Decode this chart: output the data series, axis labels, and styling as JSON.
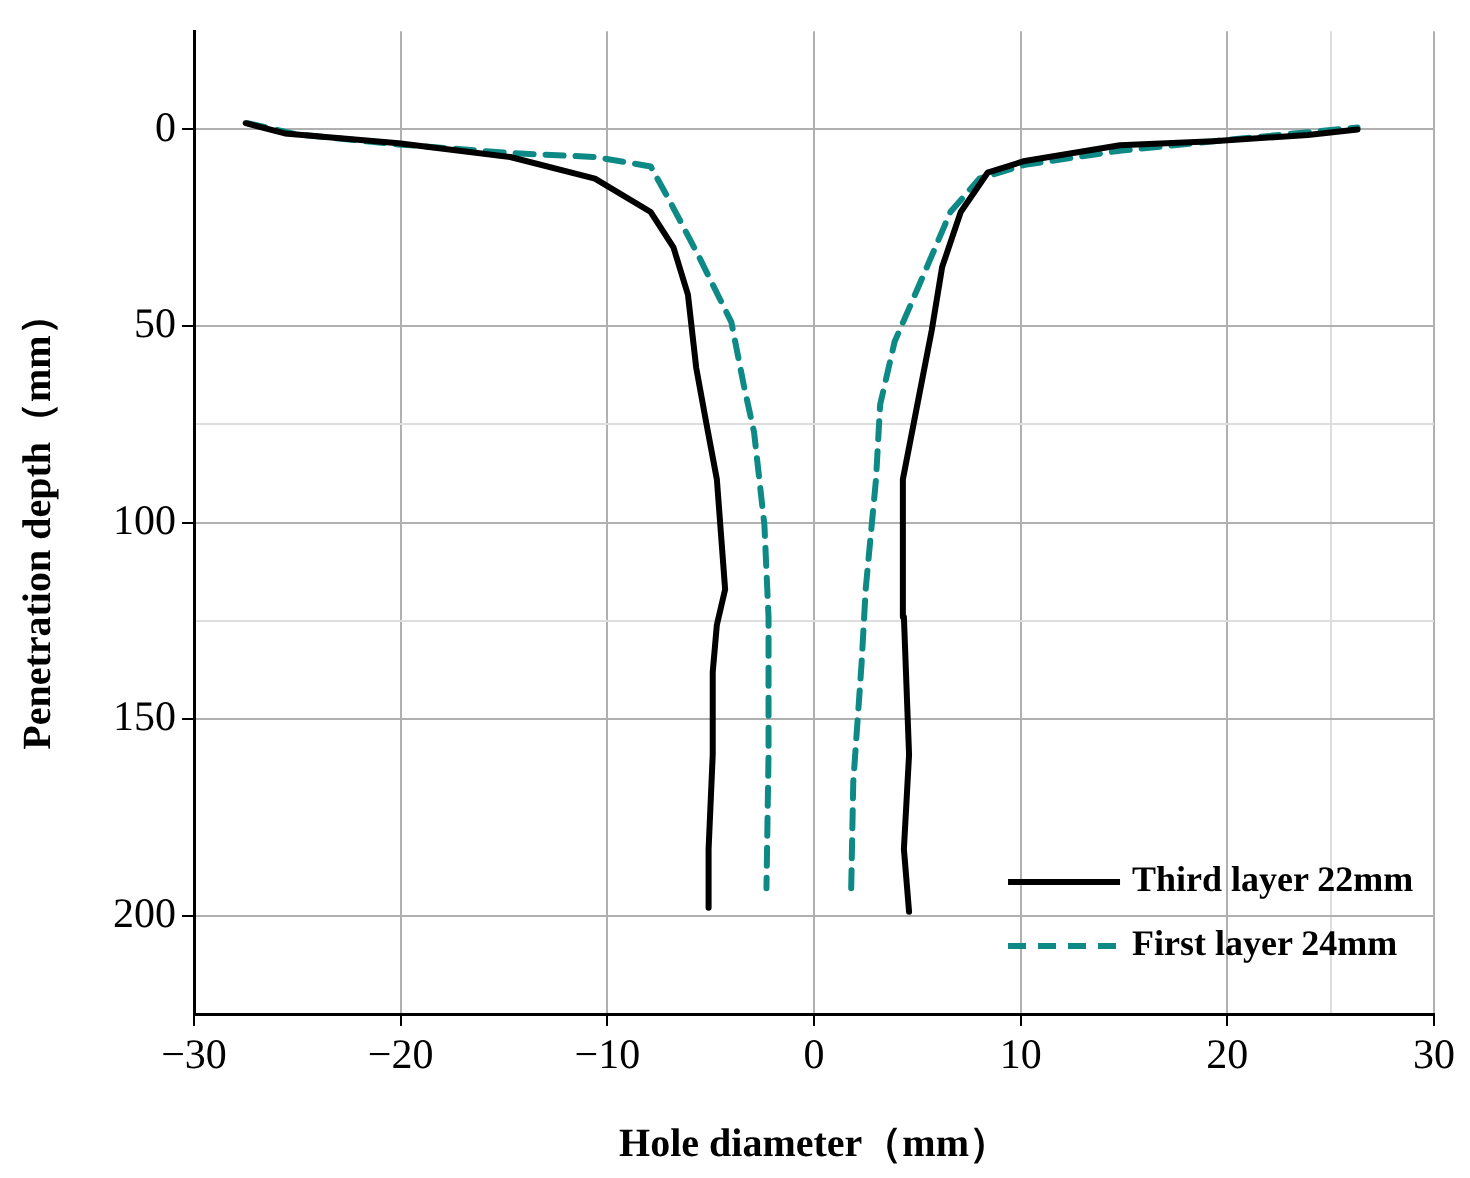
{
  "chart_data": {
    "type": "line",
    "xlabel": "Hole diameter（mm）",
    "ylabel": "Penetration depth（mm）",
    "xlim": [
      -30,
      30
    ],
    "xticks": [
      -30,
      -20,
      -10,
      0,
      10,
      20,
      {
        "value": 25,
        "label": null
      },
      30
    ],
    "ylim": [
      225,
      -25
    ],
    "yticks": [
      0,
      50,
      {
        "value": 75,
        "label": null
      },
      100,
      {
        "value": 125,
        "label": null
      },
      150,
      200
    ],
    "grid": true,
    "legend": "bottom right",
    "marker": "none",
    "series": [
      {
        "name": "Third layer 22mm",
        "color": "#000000",
        "line_style": "solid",
        "x": [
          -27.5,
          -25.6,
          -20.1,
          -14.7,
          -10.6,
          -7.9,
          -6.8,
          -6.1,
          -5.7,
          -5.2,
          -4.7,
          -4.5,
          -4.3,
          -4.7,
          -4.9,
          -4.9,
          -5.1,
          -5.1,
          null,
          4.6,
          4.35,
          4.6,
          4.35,
          4.3,
          5.0,
          5.7,
          6.2,
          7.1,
          8.4,
          10.2,
          14.8,
          19.3,
          23.9,
          26.3
        ],
        "values": [
          -1.6,
          1,
          3.5,
          7,
          12.5,
          21,
          30,
          42,
          60.6,
          75,
          89,
          103,
          117,
          126,
          138,
          159,
          183,
          198,
          null,
          199,
          183,
          159,
          124,
          89,
          70,
          51,
          35,
          21,
          11,
          8,
          4,
          3,
          1.4,
          0
        ]
      },
      {
        "name": "First layer 24mm",
        "color": "#0e8a86",
        "line_style": "dashed",
        "x": [
          -27.4,
          -25.1,
          -20.1,
          -14.7,
          -10.6,
          -7.9,
          -7.0,
          -5.6,
          -4.0,
          -3.4,
          -2.9,
          -2.4,
          -2.2,
          -2.2,
          -2.3,
          null,
          1.8,
          1.9,
          2.3,
          2.5,
          3.0,
          3.2,
          3.9,
          5.3,
          6.6,
          8.0,
          10.2,
          14.8,
          19.3,
          23.9,
          26.3
        ],
        "values": [
          -1.6,
          1.2,
          3.8,
          6,
          7,
          9.4,
          18,
          32,
          49,
          65,
          77,
          100.6,
          124,
          159,
          193,
          null,
          193,
          166,
          136,
          117,
          89,
          70,
          54,
          37,
          21,
          12.5,
          9,
          5.4,
          3,
          0.7,
          -0.5
        ]
      }
    ]
  }
}
